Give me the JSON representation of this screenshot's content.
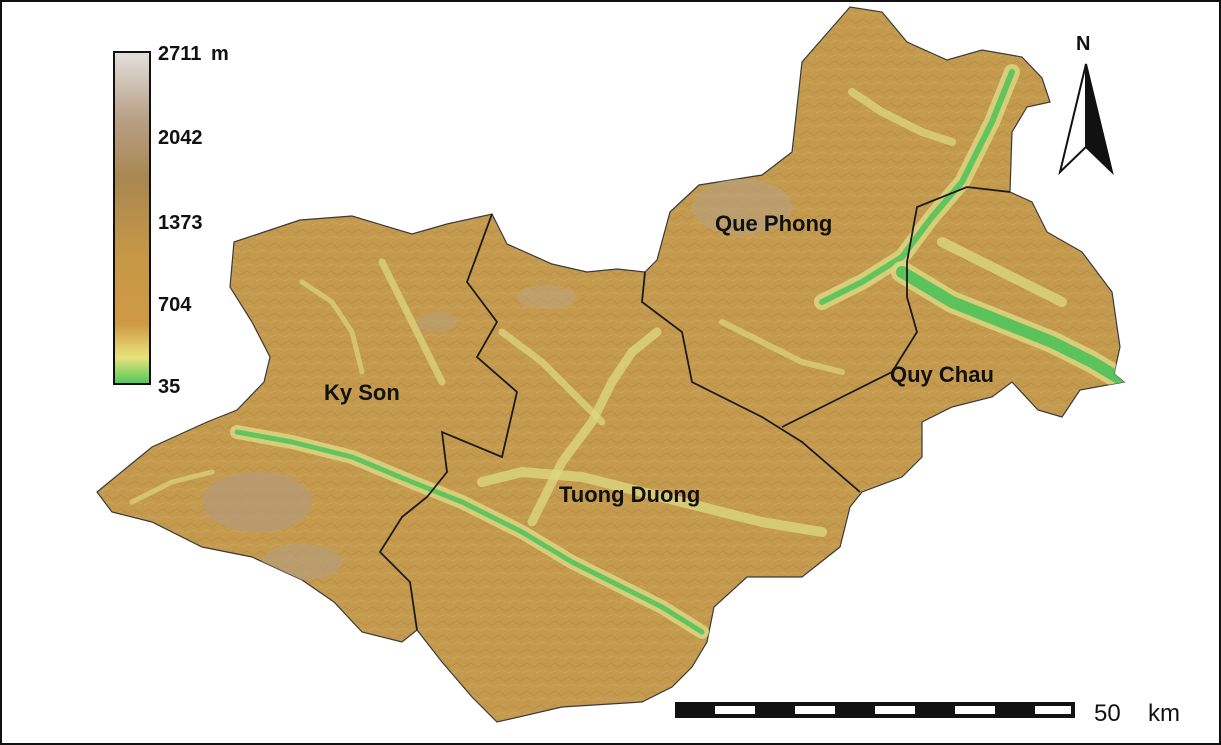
{
  "legend": {
    "max_label": "2711",
    "unit": "m",
    "ticks": [
      "2042",
      "1373",
      "704",
      "35"
    ],
    "colors": [
      "#d9d9d5",
      "#a9865a",
      "#c49547",
      "#c99040",
      "#e6e07a",
      "#4ec95d"
    ]
  },
  "districts": {
    "ky_son": "Ky Son",
    "tuong_duong": "Tuong Duong",
    "que_phong": "Que Phong",
    "quy_chau": "Quy Chau"
  },
  "north_arrow": {
    "label": "N"
  },
  "scale_bar": {
    "value": "50",
    "unit": "km"
  },
  "colors": {
    "terrain_base": "#c49a4e",
    "terrain_high": "#b8955f",
    "valley_light": "#dcd680",
    "valley_green": "#5cc25c",
    "boundary": "#1a1a1a"
  }
}
